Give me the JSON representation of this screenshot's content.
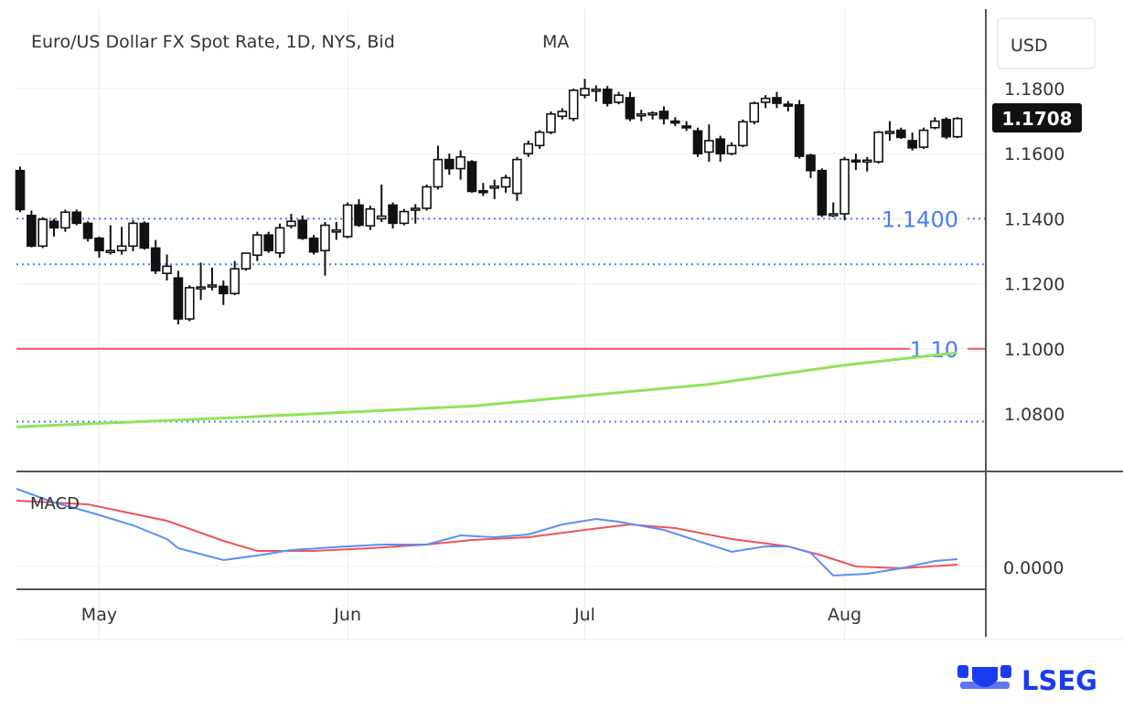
{
  "chart_data": {
    "type": "candlestick",
    "title": "Euro/US Dollar FX Spot Rate, 1D, NYS, Bid",
    "indicator_label": "MA",
    "currency": "USD",
    "last_price": "1.1708",
    "ylim": [
      1.07,
      1.19
    ],
    "y_ticks": [
      "1.1800",
      "1.1600",
      "1.1400",
      "1.1200",
      "1.1000",
      "1.0800"
    ],
    "x_ticks": [
      {
        "label": "May",
        "day": 7
      },
      {
        "label": "Jun",
        "day": 29
      },
      {
        "label": "Jul",
        "day": 50
      },
      {
        "label": "Aug",
        "day": 73
      }
    ],
    "ohlc": [
      [
        1.1548,
        1.156,
        1.142,
        1.1428
      ],
      [
        1.141,
        1.1425,
        1.1312,
        1.1316
      ],
      [
        1.1316,
        1.1405,
        1.131,
        1.1398
      ],
      [
        1.1392,
        1.14,
        1.1345,
        1.1372
      ],
      [
        1.1372,
        1.1428,
        1.136,
        1.142
      ],
      [
        1.142,
        1.1428,
        1.138,
        1.1386
      ],
      [
        1.1386,
        1.1392,
        1.133,
        1.134
      ],
      [
        1.134,
        1.1345,
        1.128,
        1.1302
      ],
      [
        1.13,
        1.138,
        1.129,
        1.1302
      ],
      [
        1.1302,
        1.1375,
        1.129,
        1.1316
      ],
      [
        1.1316,
        1.1395,
        1.13,
        1.1386
      ],
      [
        1.1386,
        1.1392,
        1.1305,
        1.131
      ],
      [
        1.131,
        1.1335,
        1.123,
        1.124
      ],
      [
        1.1232,
        1.129,
        1.121,
        1.1254
      ],
      [
        1.1218,
        1.124,
        1.1075,
        1.1092
      ],
      [
        1.1092,
        1.1195,
        1.1085,
        1.1188
      ],
      [
        1.1188,
        1.1265,
        1.115,
        1.119
      ],
      [
        1.1192,
        1.125,
        1.118,
        1.1196
      ],
      [
        1.1192,
        1.121,
        1.1135,
        1.117
      ],
      [
        1.117,
        1.127,
        1.1165,
        1.1246
      ],
      [
        1.1246,
        1.1295,
        1.124,
        1.1294
      ],
      [
        1.1288,
        1.136,
        1.127,
        1.135
      ],
      [
        1.135,
        1.136,
        1.1295,
        1.1302
      ],
      [
        1.1295,
        1.1385,
        1.128,
        1.1372
      ],
      [
        1.1378,
        1.1415,
        1.137,
        1.1392
      ],
      [
        1.1395,
        1.141,
        1.1335,
        1.134
      ],
      [
        1.134,
        1.135,
        1.129,
        1.1298
      ],
      [
        1.1302,
        1.139,
        1.1225,
        1.138
      ],
      [
        1.136,
        1.139,
        1.1335,
        1.1365
      ],
      [
        1.1345,
        1.145,
        1.134,
        1.1442
      ],
      [
        1.1442,
        1.146,
        1.1375,
        1.138
      ],
      [
        1.1378,
        1.144,
        1.1365,
        1.143
      ],
      [
        1.14,
        1.1505,
        1.139,
        1.1408
      ],
      [
        1.1442,
        1.145,
        1.137,
        1.1386
      ],
      [
        1.1386,
        1.143,
        1.138,
        1.1422
      ],
      [
        1.143,
        1.1445,
        1.1385,
        1.1432
      ],
      [
        1.1432,
        1.1505,
        1.1425,
        1.1498
      ],
      [
        1.1498,
        1.1625,
        1.149,
        1.1582
      ],
      [
        1.1582,
        1.16,
        1.1535,
        1.1554
      ],
      [
        1.1554,
        1.161,
        1.152,
        1.159
      ],
      [
        1.1575,
        1.158,
        1.148,
        1.1484
      ],
      [
        1.1486,
        1.151,
        1.147,
        1.1484
      ],
      [
        1.1498,
        1.152,
        1.146,
        1.15
      ],
      [
        1.1498,
        1.1535,
        1.148,
        1.1526
      ],
      [
        1.1478,
        1.159,
        1.1455,
        1.1582
      ],
      [
        1.16,
        1.164,
        1.159,
        1.163
      ],
      [
        1.1625,
        1.1672,
        1.1615,
        1.1666
      ],
      [
        1.1666,
        1.173,
        1.166,
        1.1722
      ],
      [
        1.1715,
        1.174,
        1.1705,
        1.173
      ],
      [
        1.1708,
        1.18,
        1.17,
        1.1795
      ],
      [
        1.178,
        1.183,
        1.177,
        1.18
      ],
      [
        1.1795,
        1.181,
        1.176,
        1.1798
      ],
      [
        1.1798,
        1.1808,
        1.1745,
        1.1755
      ],
      [
        1.1758,
        1.179,
        1.1752,
        1.178
      ],
      [
        1.1772,
        1.179,
        1.17,
        1.1708
      ],
      [
        1.172,
        1.1735,
        1.17,
        1.1722
      ],
      [
        1.1722,
        1.173,
        1.1705,
        1.1725
      ],
      [
        1.173,
        1.1745,
        1.169,
        1.1708
      ],
      [
        1.17,
        1.1712,
        1.1685,
        1.1698
      ],
      [
        1.1685,
        1.17,
        1.167,
        1.168
      ],
      [
        1.167,
        1.168,
        1.159,
        1.16
      ],
      [
        1.1605,
        1.169,
        1.1575,
        1.164
      ],
      [
        1.1645,
        1.1655,
        1.1575,
        1.16
      ],
      [
        1.16,
        1.1635,
        1.1595,
        1.1625
      ],
      [
        1.1625,
        1.1705,
        1.162,
        1.1698
      ],
      [
        1.1698,
        1.176,
        1.169,
        1.1755
      ],
      [
        1.1758,
        1.178,
        1.174,
        1.177
      ],
      [
        1.1772,
        1.179,
        1.174,
        1.1755
      ],
      [
        1.1752,
        1.1762,
        1.173,
        1.175
      ],
      [
        1.175,
        1.1765,
        1.1585,
        1.1592
      ],
      [
        1.1595,
        1.16,
        1.1525,
        1.1548
      ],
      [
        1.1548,
        1.1555,
        1.1405,
        1.1412
      ],
      [
        1.1412,
        1.145,
        1.1405,
        1.1415
      ],
      [
        1.1415,
        1.159,
        1.1395,
        1.1582
      ],
      [
        1.158,
        1.16,
        1.155,
        1.1578
      ],
      [
        1.1578,
        1.159,
        1.1545,
        1.158
      ],
      [
        1.1575,
        1.167,
        1.157,
        1.1666
      ],
      [
        1.1666,
        1.17,
        1.164,
        1.1668
      ],
      [
        1.1672,
        1.168,
        1.1645,
        1.165
      ],
      [
        1.164,
        1.1665,
        1.161,
        1.1618
      ],
      [
        1.162,
        1.168,
        1.1615,
        1.1672
      ],
      [
        1.168,
        1.1712,
        1.1675,
        1.17
      ],
      [
        1.1705,
        1.1712,
        1.1645,
        1.1652
      ],
      [
        1.1652,
        1.1712,
        1.1648,
        1.1708
      ]
    ],
    "moving_average": [
      [
        0,
        1.076
      ],
      [
        20,
        1.079
      ],
      [
        40,
        1.0824
      ],
      [
        61,
        1.0891
      ],
      [
        73,
        1.095
      ],
      [
        83,
        1.0988
      ]
    ],
    "levels": [
      {
        "value": 1.14,
        "label": "1.1400",
        "style": "dotted",
        "color": "#4a7cf5"
      },
      {
        "value": 1.126,
        "label": "",
        "style": "dotted",
        "color": "#4a7cf5"
      },
      {
        "value": 1.1,
        "label": "1.10",
        "style": "solid",
        "color": "#f0535a"
      },
      {
        "value": 1.0776,
        "label": "",
        "style": "dotted",
        "color": "#4a7cf5"
      }
    ],
    "macd": {
      "label": "MACD",
      "zero_label": "0.0000",
      "ylim": [
        -0.0025,
        0.0102
      ],
      "macd_line": [
        [
          0,
          0.0085
        ],
        [
          3,
          0.007
        ],
        [
          6,
          0.006
        ],
        [
          10,
          0.0045
        ],
        [
          13,
          0.003
        ],
        [
          14,
          0.002
        ],
        [
          18,
          0.0007
        ],
        [
          21,
          0.0012
        ],
        [
          24,
          0.0018
        ],
        [
          29,
          0.0022
        ],
        [
          32,
          0.0024
        ],
        [
          36,
          0.0024
        ],
        [
          39,
          0.0034
        ],
        [
          42,
          0.0032
        ],
        [
          45,
          0.0035
        ],
        [
          48,
          0.0046
        ],
        [
          51,
          0.0052
        ],
        [
          53,
          0.0049
        ],
        [
          57,
          0.004
        ],
        [
          60,
          0.0028
        ],
        [
          63,
          0.0016
        ],
        [
          66,
          0.0022
        ],
        [
          68,
          0.0022
        ],
        [
          70,
          0.0015
        ],
        [
          72,
          -0.001
        ],
        [
          75,
          -0.0008
        ],
        [
          78,
          -0.0002
        ],
        [
          81,
          0.0006
        ],
        [
          83,
          0.0008
        ]
      ],
      "signal_line": [
        [
          0,
          0.0072
        ],
        [
          6,
          0.0068
        ],
        [
          13,
          0.005
        ],
        [
          18,
          0.0028
        ],
        [
          21,
          0.0017
        ],
        [
          26,
          0.0017
        ],
        [
          31,
          0.002
        ],
        [
          36,
          0.0024
        ],
        [
          40,
          0.0029
        ],
        [
          45,
          0.0032
        ],
        [
          50,
          0.004
        ],
        [
          54,
          0.0046
        ],
        [
          58,
          0.0042
        ],
        [
          63,
          0.003
        ],
        [
          68,
          0.0022
        ],
        [
          71,
          0.0012
        ],
        [
          74,
          0.0
        ],
        [
          78,
          -0.0002
        ],
        [
          83,
          0.0002
        ]
      ]
    },
    "colors": {
      "ma": "#8fe35a",
      "macd": "#5b8ff9",
      "signal": "#f0535a",
      "grid": "#ececec",
      "brand": "#1a3cf0"
    }
  },
  "brand": {
    "logo_text": "LSEG"
  }
}
